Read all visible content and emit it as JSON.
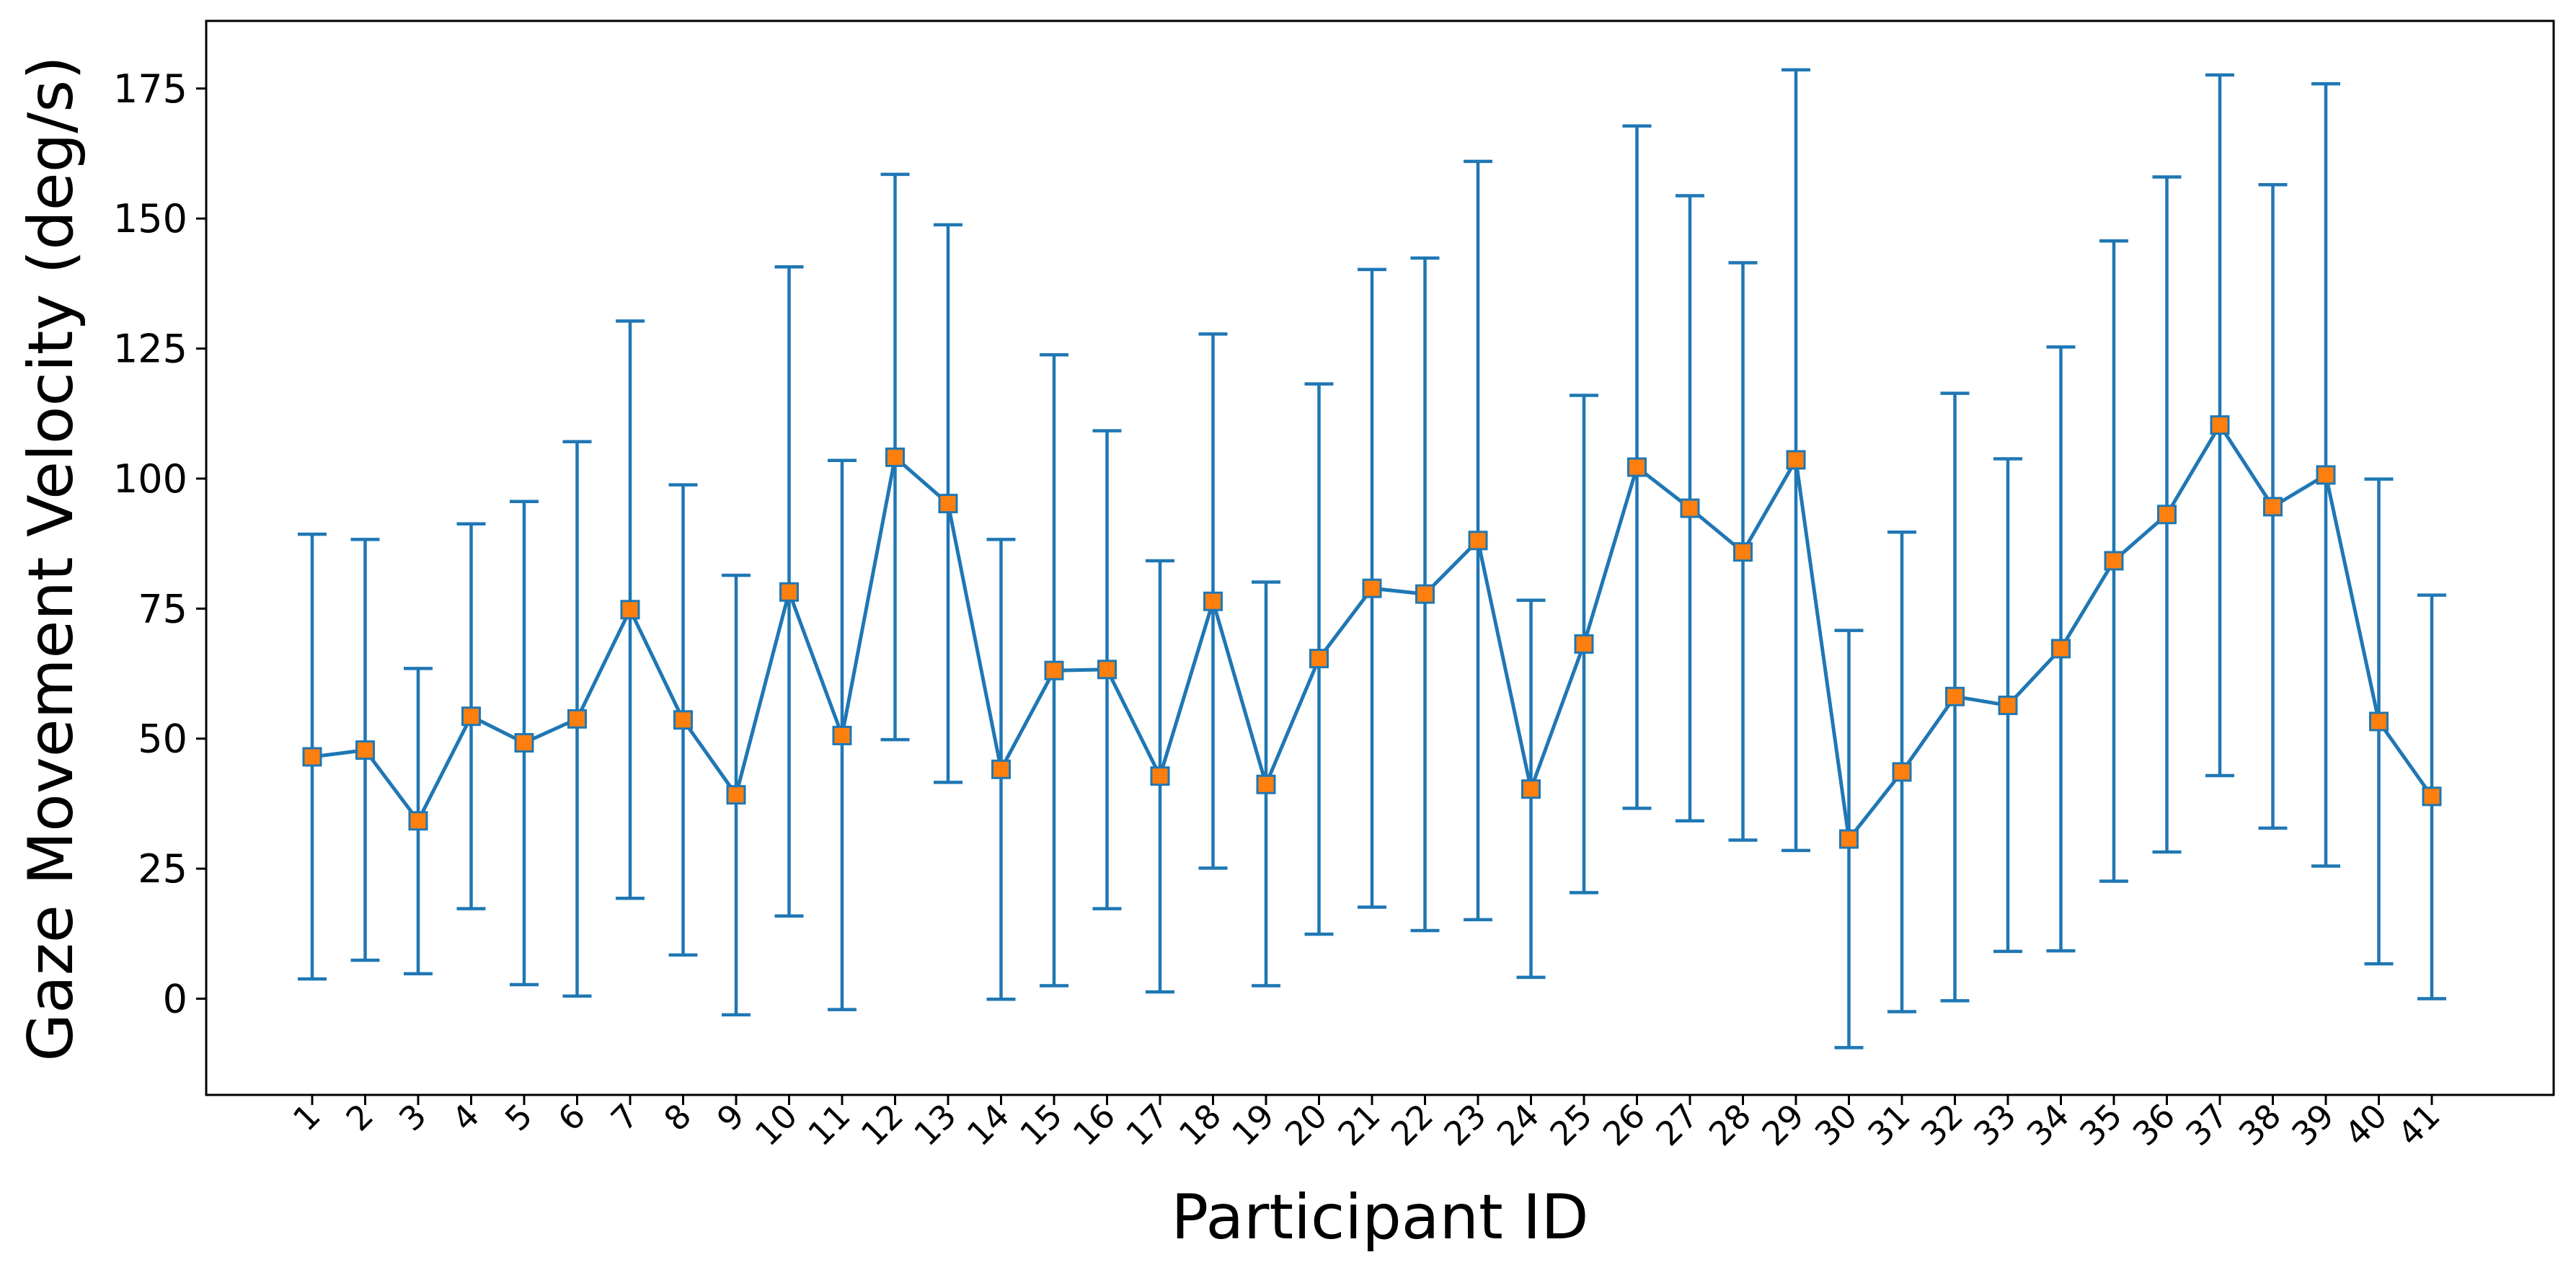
{
  "chart_data": {
    "type": "line",
    "title": "",
    "xlabel": "Participant ID",
    "ylabel": "Gaze Movement Velocity (deg/s)",
    "ylim": [
      -18.5,
      188
    ],
    "yticks": [
      0,
      25,
      50,
      75,
      100,
      125,
      150,
      175
    ],
    "grid": false,
    "legend": "none",
    "line_color": "#1f77b4",
    "marker_color": "#ff7f0e",
    "marker": "square",
    "error_bars": "mean ± std",
    "categories": [
      "1",
      "2",
      "3",
      "4",
      "5",
      "6",
      "7",
      "8",
      "9",
      "10",
      "11",
      "12",
      "13",
      "14",
      "15",
      "16",
      "17",
      "18",
      "19",
      "20",
      "21",
      "22",
      "23",
      "24",
      "25",
      "26",
      "27",
      "28",
      "29",
      "30",
      "31",
      "32",
      "33",
      "34",
      "35",
      "36",
      "37",
      "38",
      "39",
      "40",
      "41"
    ],
    "values": [
      46.5,
      47.8,
      34.2,
      54.3,
      49.2,
      53.8,
      74.8,
      53.6,
      39.2,
      78.2,
      50.6,
      104.1,
      95.2,
      44.1,
      63.1,
      63.3,
      42.8,
      76.4,
      41.2,
      65.4,
      78.9,
      77.8,
      88.1,
      40.3,
      68.2,
      102.2,
      94.3,
      85.9,
      103.6,
      30.7,
      43.6,
      58.1,
      56.4,
      67.3,
      84.2,
      93.1,
      110.3,
      94.6,
      100.7,
      53.3,
      38.9
    ],
    "lower": [
      3.8,
      7.4,
      4.8,
      17.3,
      2.7,
      0.5,
      19.3,
      8.4,
      -3.1,
      15.9,
      -2.1,
      49.8,
      41.6,
      -0.1,
      2.5,
      17.3,
      1.3,
      25.1,
      2.5,
      12.4,
      17.6,
      13.1,
      15.2,
      4.1,
      20.4,
      36.6,
      34.2,
      30.5,
      28.5,
      -9.4,
      -2.5,
      -0.4,
      9.1,
      9.2,
      22.6,
      28.2,
      42.9,
      32.8,
      25.5,
      6.7,
      0.0
    ],
    "upper": [
      89.3,
      88.3,
      63.5,
      91.3,
      95.6,
      107.1,
      130.3,
      98.8,
      81.4,
      140.7,
      103.5,
      158.5,
      148.8,
      88.3,
      123.8,
      109.2,
      84.2,
      127.8,
      80.1,
      118.2,
      140.2,
      142.4,
      161.0,
      76.6,
      116.0,
      167.8,
      154.4,
      141.5,
      178.6,
      70.8,
      89.7,
      116.4,
      103.8,
      125.3,
      145.7,
      158.0,
      177.6,
      156.5,
      175.9,
      99.9,
      77.6
    ]
  }
}
